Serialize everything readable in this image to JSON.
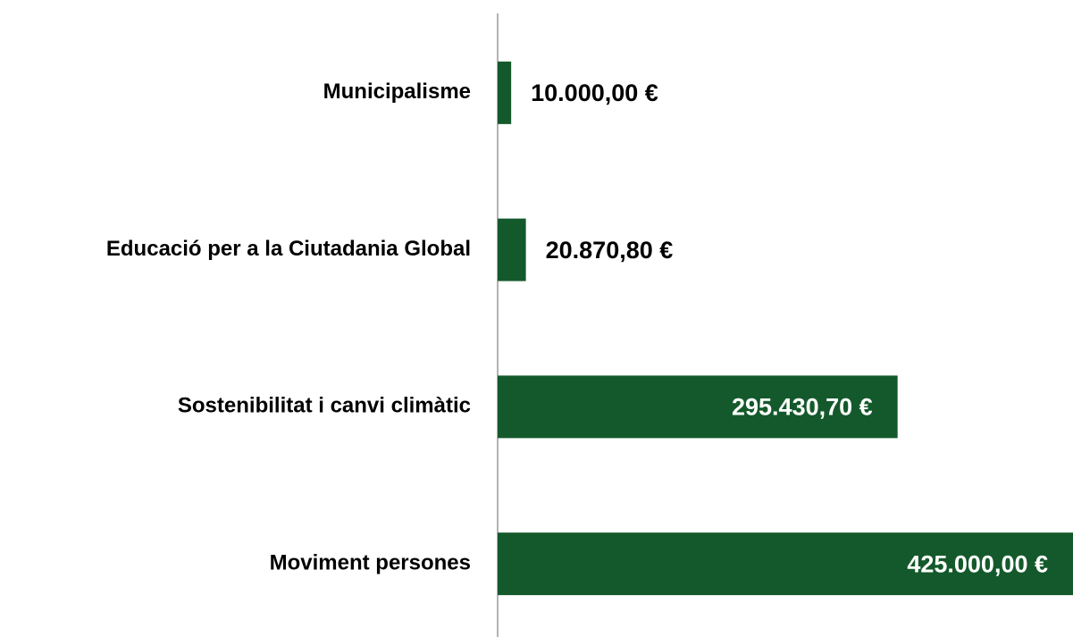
{
  "chart_data": {
    "type": "barh",
    "categories": [
      "Municipalisme",
      "Educació per a la Ciutadania Global",
      "Sostenibilitat i canvi climàtic",
      "Moviment persones"
    ],
    "values": [
      10000,
      20870.8,
      295430.7,
      425000
    ],
    "value_labels": [
      "10.000,00 €",
      "20.870,80 €",
      "295.430,70 €",
      "425.000,00 €"
    ],
    "color": "#14592b"
  }
}
